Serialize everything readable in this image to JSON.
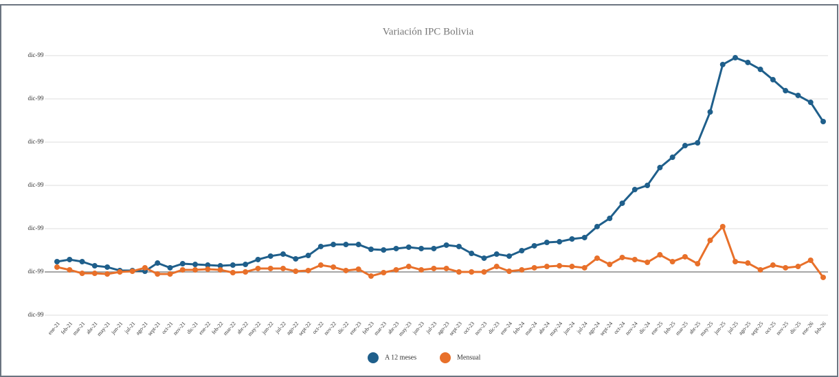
{
  "chart_data": {
    "type": "line",
    "title": "Variación IPC Bolivia",
    "categories": [
      "ene-21",
      "feb-21",
      "mar-21",
      "abr-21",
      "may-21",
      "jun-21",
      "jul-21",
      "ago-21",
      "sept-21",
      "oct-21",
      "nov-21",
      "dic-21",
      "ene-22",
      "feb-22",
      "mar-22",
      "abr-22",
      "may-22",
      "jun-22",
      "jul-22",
      "ago-22",
      "sept-22",
      "oct-22",
      "nov-22",
      "dic-22",
      "ene-23",
      "feb-23",
      "mar-23",
      "abr-23",
      "may-23",
      "jun-23",
      "jul-23",
      "ago-23",
      "sept-23",
      "oct-23",
      "nov-23",
      "dic-23",
      "ene-24",
      "feb-24",
      "mar-24",
      "abr-24",
      "may-24",
      "jun-24",
      "jul-24",
      "ago-24",
      "sept-24",
      "oct-24",
      "nov-24",
      "dic-24",
      "ene-25",
      "feb-25",
      "mar-25",
      "abr-25",
      "may-25",
      "jun-25",
      "jul-25",
      "ago-25",
      "sept-25",
      "oct-25",
      "nov-25",
      "dic-25",
      "ene-26",
      "feb-26"
    ],
    "series": [
      {
        "name": "A 12 meses",
        "color": "#1f5f8b",
        "values": [
          1.19,
          1.43,
          1.19,
          0.71,
          0.56,
          0.16,
          0.16,
          0.08,
          1.03,
          0.48,
          0.95,
          0.87,
          0.79,
          0.71,
          0.79,
          0.87,
          1.43,
          1.83,
          2.06,
          1.51,
          1.9,
          2.94,
          3.17,
          3.17,
          3.17,
          2.62,
          2.54,
          2.7,
          2.86,
          2.7,
          2.7,
          3.1,
          2.94,
          2.14,
          1.59,
          2.06,
          1.83,
          2.46,
          3.02,
          3.41,
          3.49,
          3.81,
          3.97,
          5.24,
          6.19,
          7.94,
          9.52,
          10.0,
          12.06,
          13.25,
          14.6,
          14.92,
          18.49,
          23.97,
          24.76,
          24.21,
          23.41,
          22.22,
          20.95,
          20.4,
          19.6,
          17.38
        ]
      },
      {
        "name": "Mensual",
        "color": "#e8702a",
        "values": [
          0.56,
          0.24,
          -0.16,
          -0.16,
          -0.24,
          0,
          0.08,
          0.48,
          -0.24,
          -0.24,
          0.24,
          0.24,
          0.32,
          0.24,
          -0.08,
          0,
          0.4,
          0.4,
          0.4,
          0.08,
          0.16,
          0.79,
          0.56,
          0.16,
          0.32,
          -0.48,
          -0.08,
          0.24,
          0.63,
          0.24,
          0.4,
          0.4,
          0,
          0,
          0,
          0.63,
          0.08,
          0.24,
          0.48,
          0.63,
          0.71,
          0.63,
          0.48,
          1.59,
          0.87,
          1.67,
          1.43,
          1.11,
          1.98,
          1.19,
          1.75,
          0.95,
          3.65,
          5.24,
          1.19,
          1.03,
          0.24,
          0.79,
          0.48,
          0.63,
          1.35,
          -0.63
        ]
      }
    ],
    "ylim": [
      -5,
      25
    ],
    "yticks": [
      {
        "value": -5,
        "label": "dic-99"
      },
      {
        "value": 0,
        "label": "dic-99"
      },
      {
        "value": 5,
        "label": "dic-99"
      },
      {
        "value": 10,
        "label": "dic-99"
      },
      {
        "value": 15,
        "label": "dic-99"
      },
      {
        "value": 20,
        "label": "dic-99"
      },
      {
        "value": 25,
        "label": "dic-99"
      }
    ],
    "grid": true,
    "legend": "bottom"
  }
}
